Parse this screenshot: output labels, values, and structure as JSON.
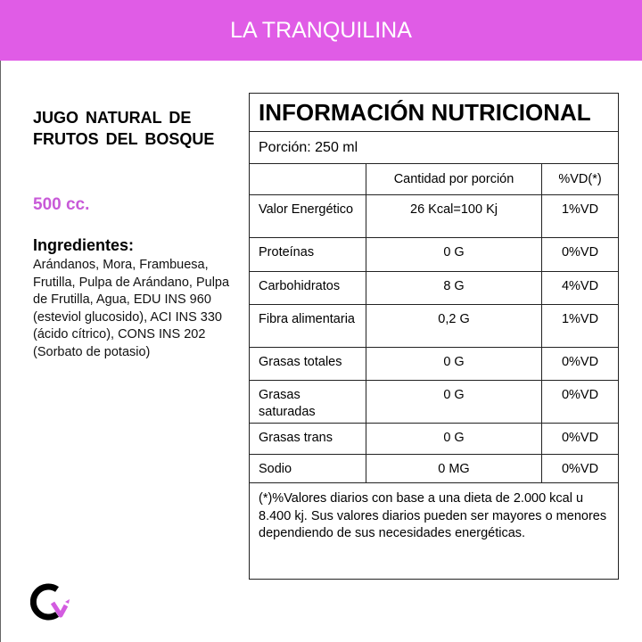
{
  "header": {
    "brand": "LA TRANQUILINA"
  },
  "product": {
    "name": "JUGO NATURAL DE FRUTOS DEL BOSQUE",
    "size": "500 cc.",
    "ingredients_title": "Ingredientes:",
    "ingredients": "Arándanos, Mora, Frambuesa, Frutilla, Pulpa de Arándano, Pulpa de Frutilla, Agua, EDU INS 960 (esteviol glucosido), ACI INS 330 (ácido cítrico), CONS INS 202 (Sorbato de potasio)"
  },
  "nutrition": {
    "title": "INFORMACIÓN NUTRICIONAL",
    "portion": "Porción: 250 ml",
    "col_amount": "Cantidad por porción",
    "col_vd": "%VD(*)",
    "rows": [
      {
        "name": "Valor Energético",
        "amount": "26 Kcal=100 Kj",
        "vd": "1%VD"
      },
      {
        "name": "Proteínas",
        "amount": "0 G",
        "vd": "0%VD"
      },
      {
        "name": "Carbohidratos",
        "amount": "8 G",
        "vd": "4%VD"
      },
      {
        "name": "Fibra alimentaria",
        "amount": "0,2 G",
        "vd": "1%VD"
      },
      {
        "name": "Grasas totales",
        "amount": "0 G",
        "vd": "0%VD"
      },
      {
        "name": "Grasas saturadas",
        "amount": "0 G",
        "vd": "0%VD"
      },
      {
        "name": "Grasas trans",
        "amount": "0 G",
        "vd": "0%VD"
      },
      {
        "name": "Sodio",
        "amount": "0 MG",
        "vd": "0%VD"
      }
    ],
    "footnote": "(*)%Valores diarios con base a una dieta de 2.000 kcal u 8.400 kj. Sus valores diarios pueden ser mayores o menores dependiendo de sus necesidades energéticas."
  },
  "colors": {
    "brand": "#E05CE6",
    "size_text": "#C85AD8"
  },
  "logo": {
    "icon": "brand-logo-icon"
  }
}
